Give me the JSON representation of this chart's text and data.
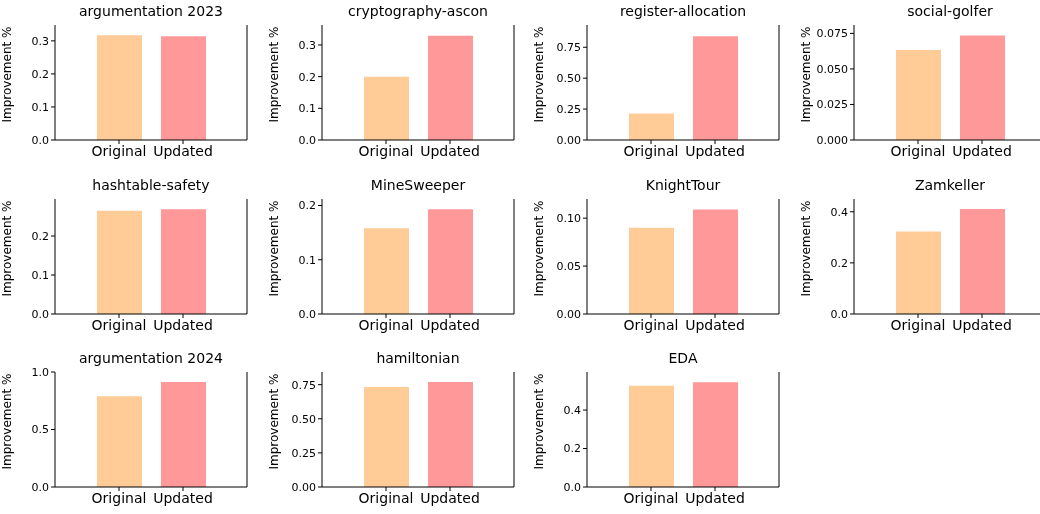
{
  "chart_data": [
    {
      "type": "bar",
      "title": "argumentation 2023",
      "ylabel": "Improvement %",
      "categories": [
        "Original",
        "Updated"
      ],
      "values": [
        0.317,
        0.314
      ],
      "colors": [
        "#ffcb96",
        "#ff9899"
      ],
      "ylim": [
        0,
        0.348
      ],
      "yticks": [
        {
          "value": 0,
          "label": "0.0"
        },
        0.1,
        0.2,
        0.3
      ]
    },
    {
      "type": "bar",
      "title": "cryptography-ascon",
      "ylabel": "Improvement %",
      "categories": [
        "Original",
        "Updated"
      ],
      "values": [
        0.2,
        0.329
      ],
      "colors": [
        "#ffcb96",
        "#ff9899"
      ],
      "ylim": [
        0,
        0.363
      ],
      "yticks": [
        {
          "value": 0,
          "label": "0.0"
        },
        0.1,
        0.2,
        0.3
      ]
    },
    {
      "type": "bar",
      "title": "register-allocation",
      "ylabel": "Improvement %",
      "categories": [
        "Original",
        "Updated"
      ],
      "values": [
        0.215,
        0.84
      ],
      "colors": [
        "#ffcb96",
        "#ff9899"
      ],
      "ylim": [
        0,
        0.93
      ],
      "yticks": [
        {
          "value": 0,
          "label": "0.00"
        },
        0.25,
        {
          "value": 0.5,
          "label": "0.50"
        },
        0.75
      ]
    },
    {
      "type": "bar",
      "title": "social-golfer",
      "ylabel": "Improvement %",
      "categories": [
        "Original",
        "Updated"
      ],
      "values": [
        0.0633,
        0.0736
      ],
      "colors": [
        "#ffcb96",
        "#ff9899"
      ],
      "ylim": [
        0,
        0.0809
      ],
      "yticks": [
        {
          "value": 0,
          "label": "0.000"
        },
        0.025,
        {
          "value": 0.05,
          "label": "0.050"
        },
        0.075
      ]
    },
    {
      "type": "bar",
      "title": "hashtable-safety",
      "ylabel": "Improvement %",
      "categories": [
        "Original",
        "Updated"
      ],
      "values": [
        0.265,
        0.269
      ],
      "colors": [
        "#ffcb96",
        "#ff9899"
      ],
      "ylim": [
        0,
        0.295
      ],
      "yticks": [
        {
          "value": 0,
          "label": "0.0"
        },
        0.1,
        0.2
      ]
    },
    {
      "type": "bar",
      "title": "MineSweeper",
      "ylabel": "Improvement %",
      "categories": [
        "Original",
        "Updated"
      ],
      "values": [
        0.158,
        0.193
      ],
      "colors": [
        "#ffcb96",
        "#ff9899"
      ],
      "ylim": [
        0,
        0.212
      ],
      "yticks": [
        {
          "value": 0,
          "label": "0.0"
        },
        0.1,
        0.2
      ]
    },
    {
      "type": "bar",
      "title": "KnightTour",
      "ylabel": "Improvement %",
      "categories": [
        "Original",
        "Updated"
      ],
      "values": [
        0.09,
        0.109
      ],
      "colors": [
        "#ffcb96",
        "#ff9899"
      ],
      "ylim": [
        0,
        0.12
      ],
      "yticks": [
        {
          "value": 0,
          "label": "0.00"
        },
        0.05,
        {
          "value": 0.1,
          "label": "0.10"
        }
      ]
    },
    {
      "type": "bar",
      "title": "Zamkeller",
      "ylabel": "Improvement %",
      "categories": [
        "Original",
        "Updated"
      ],
      "values": [
        0.323,
        0.411
      ],
      "colors": [
        "#ffcb96",
        "#ff9899"
      ],
      "ylim": [
        0,
        0.45
      ],
      "yticks": [
        {
          "value": 0,
          "label": "0.0"
        },
        0.2,
        0.4
      ]
    },
    {
      "type": "bar",
      "title": "argumentation 2024",
      "ylabel": "Improvement %",
      "categories": [
        "Original",
        "Updated"
      ],
      "values": [
        0.79,
        0.913
      ],
      "colors": [
        "#ffcb96",
        "#ff9899"
      ],
      "ylim": [
        0,
        1.0
      ],
      "yticks": [
        {
          "value": 0,
          "label": "0.0"
        },
        0.5,
        {
          "value": 1,
          "label": "1.0"
        }
      ]
    },
    {
      "type": "bar",
      "title": "hamiltonian",
      "ylabel": "Improvement %",
      "categories": [
        "Original",
        "Updated"
      ],
      "values": [
        0.733,
        0.77
      ],
      "colors": [
        "#ffcb96",
        "#ff9899"
      ],
      "ylim": [
        0,
        0.843
      ],
      "yticks": [
        {
          "value": 0,
          "label": "0.00"
        },
        0.25,
        {
          "value": 0.5,
          "label": "0.50"
        },
        0.75
      ]
    },
    {
      "type": "bar",
      "title": "EDA",
      "ylabel": "Improvement %",
      "categories": [
        "Original",
        "Updated"
      ],
      "values": [
        0.526,
        0.545
      ],
      "colors": [
        "#ffcb96",
        "#ff9899"
      ],
      "ylim": [
        0,
        0.598
      ],
      "yticks": [
        {
          "value": 0,
          "label": "0.0"
        },
        0.2,
        0.4
      ]
    }
  ]
}
